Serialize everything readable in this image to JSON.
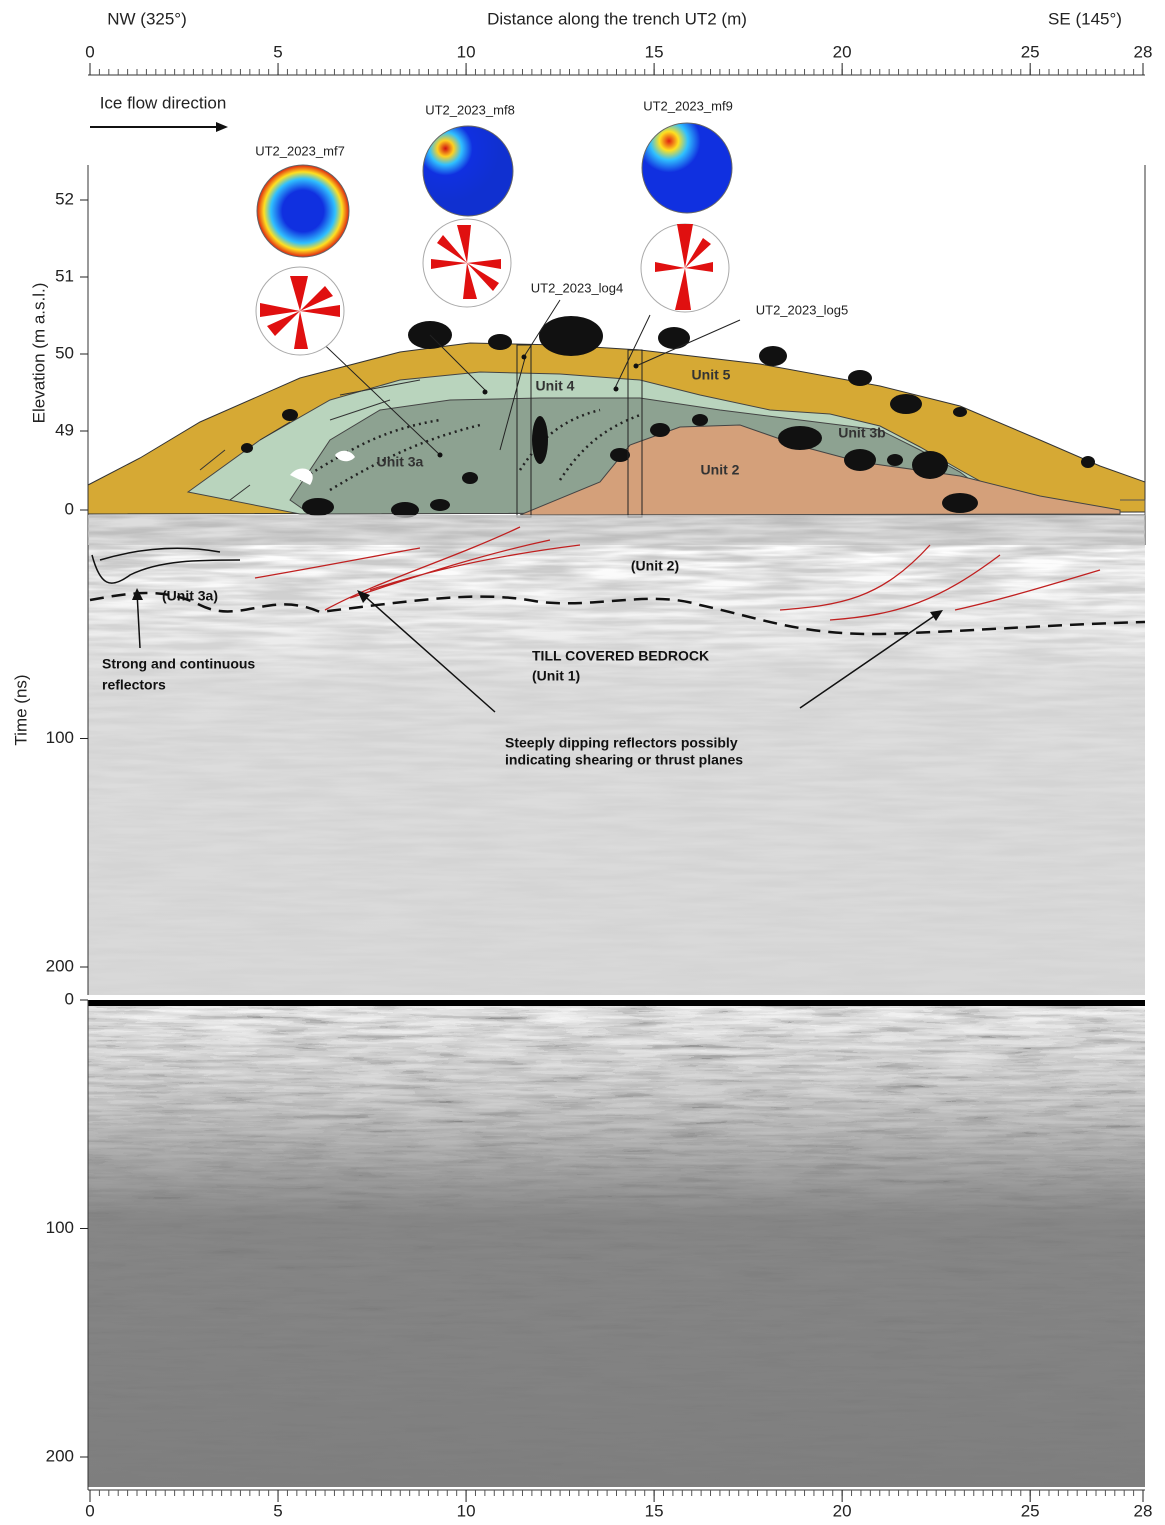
{
  "header": {
    "left": "NW (325°)",
    "title": "Distance along the trench UT2 (m)",
    "right": "SE (145°)"
  },
  "distance_axis": {
    "ticks": [
      0,
      5,
      10,
      15,
      20,
      25,
      28
    ]
  },
  "section": {
    "ice_flow": "Ice flow direction",
    "elevation_label": "Elevation (m a.s.l.)",
    "elevation_ticks": [
      49,
      50,
      51,
      52
    ],
    "fabrics": [
      "UT2_2023_mf7",
      "UT2_2023_mf8",
      "UT2_2023_mf9"
    ],
    "logs": [
      "UT2_2023_log4",
      "UT2_2023_log5"
    ],
    "units": [
      "Unit 5",
      "Unit 4",
      "Unit 3a",
      "Unit 3b",
      "Unit 2"
    ]
  },
  "interpreted_radargram": {
    "time_label": "Time (ns)",
    "time_ticks": [
      0,
      100,
      200
    ],
    "labels": [
      "(Unit 2)",
      "(Unit 3a)"
    ],
    "reflectors_note": [
      "Strong and continuous",
      "reflectors"
    ],
    "bedrock_note": [
      "TILL COVERED BEDROCK",
      "(Unit 1)"
    ],
    "dipping_note": [
      "Steeply dipping reflectors possibly",
      "indicating shearing or thrust planes"
    ]
  },
  "raw_radargram": {
    "time_ticks": [
      0,
      100,
      200
    ]
  }
}
